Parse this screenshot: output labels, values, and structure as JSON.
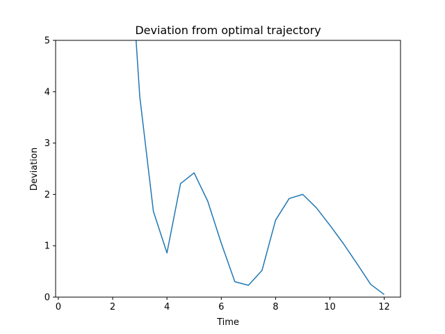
{
  "chart_data": {
    "type": "line",
    "title": "Deviation from optimal trajectory",
    "xlabel": "Time",
    "ylabel": "Deviation",
    "xlim": [
      -0.1,
      12.6
    ],
    "ylim": [
      0,
      5
    ],
    "xticks": [
      0,
      2,
      4,
      6,
      8,
      10,
      12
    ],
    "yticks": [
      0,
      1,
      2,
      3,
      4,
      5
    ],
    "grid": false,
    "series": [
      {
        "color": "#1f77b4",
        "x": [
          2.7,
          3.0,
          3.5,
          4.0,
          4.5,
          5.0,
          5.5,
          6.0,
          6.5,
          7.0,
          7.5,
          8.0,
          8.5,
          9.0,
          9.5,
          10.0,
          10.5,
          11.0,
          11.5,
          12.0
        ],
        "y": [
          6.3,
          3.9,
          1.67,
          0.86,
          2.21,
          2.42,
          1.87,
          1.05,
          0.3,
          0.23,
          0.52,
          1.5,
          1.92,
          2.0,
          1.74,
          1.4,
          1.04,
          0.65,
          0.25,
          0.05
        ]
      }
    ]
  }
}
